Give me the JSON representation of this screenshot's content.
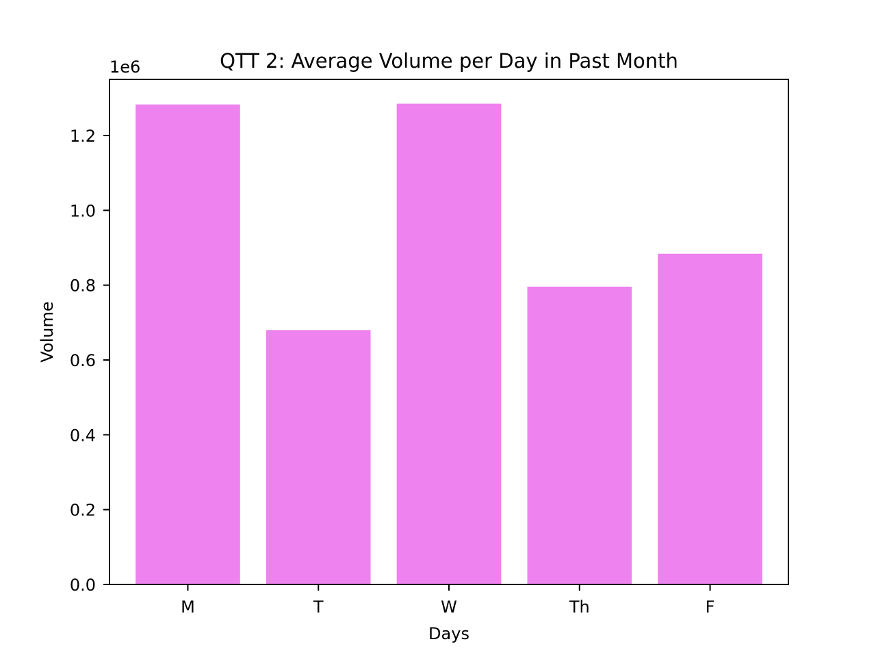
{
  "chart_data": {
    "type": "bar",
    "title": "QTT 2: Average Volume per Day in Past Month",
    "xlabel": "Days",
    "ylabel": "Volume",
    "categories": [
      "M",
      "T",
      "W",
      "Th",
      "F"
    ],
    "values": [
      1283000,
      680000,
      1285000,
      796000,
      884000
    ],
    "ylim": [
      0,
      1350000
    ],
    "yticks": [
      0,
      200000,
      400000,
      600000,
      800000,
      1000000,
      1200000
    ],
    "ytick_labels": [
      "0.0",
      "0.2",
      "0.4",
      "0.6",
      "0.8",
      "1.0",
      "1.2"
    ],
    "offset_label": "1e6",
    "bar_color": "#ee82ee",
    "grid": false,
    "legend": "none"
  }
}
